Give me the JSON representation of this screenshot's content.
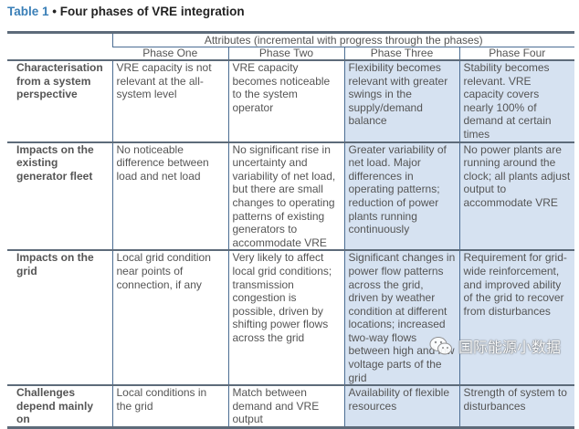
{
  "title": {
    "number": "Table 1",
    "separator": "•",
    "text": "Four phases of VRE integration"
  },
  "table": {
    "group_header": "Attributes (incremental with progress through the phases)",
    "columns": [
      "Phase One",
      "Phase Two",
      "Phase Three",
      "Phase Four"
    ],
    "rows": [
      {
        "label": "Characterisation from a system perspective",
        "cells": [
          "VRE capacity is not relevant at the all-system level",
          "VRE capacity becomes noticeable to the system operator",
          "Flexibility becomes relevant with greater swings in the supply/demand balance",
          "Stability becomes relevant. VRE capacity covers nearly 100% of demand at certain times"
        ]
      },
      {
        "label": "Impacts on the existing generator fleet",
        "cells": [
          "No noticeable difference between load and net load",
          "No significant rise in uncertainty and variability of net load, but there are small changes to operating patterns of existing generators to accommodate VRE",
          "Greater variability of net load. Major differences in operating patterns; reduction of power plants running continuously",
          "No power plants are running around the clock; all plants adjust output to accommodate VRE"
        ]
      },
      {
        "label": "Impacts on the grid",
        "cells": [
          "Local grid condition near points of connection, if any",
          "Very likely to affect local grid conditions; transmission congestion is possible, driven by shifting power flows across the grid",
          "Significant changes in power flow patterns across the grid, driven by weather condition at different locations; increased two-way flows between high and low voltage parts of the grid",
          "Requirement for grid-wide reinforcement, and improved ability of the grid to recover from disturbances"
        ]
      },
      {
        "label": "Challenges depend mainly on",
        "cells": [
          "Local conditions in the grid",
          "Match between demand and VRE output",
          "Availability of flexible resources",
          "Strength of system to disturbances"
        ]
      }
    ],
    "shade_color": "#d6e2f1",
    "border_color": "#4b6d93"
  },
  "watermark": {
    "icon": "wechat-icon",
    "text": "国际能源小数据"
  }
}
